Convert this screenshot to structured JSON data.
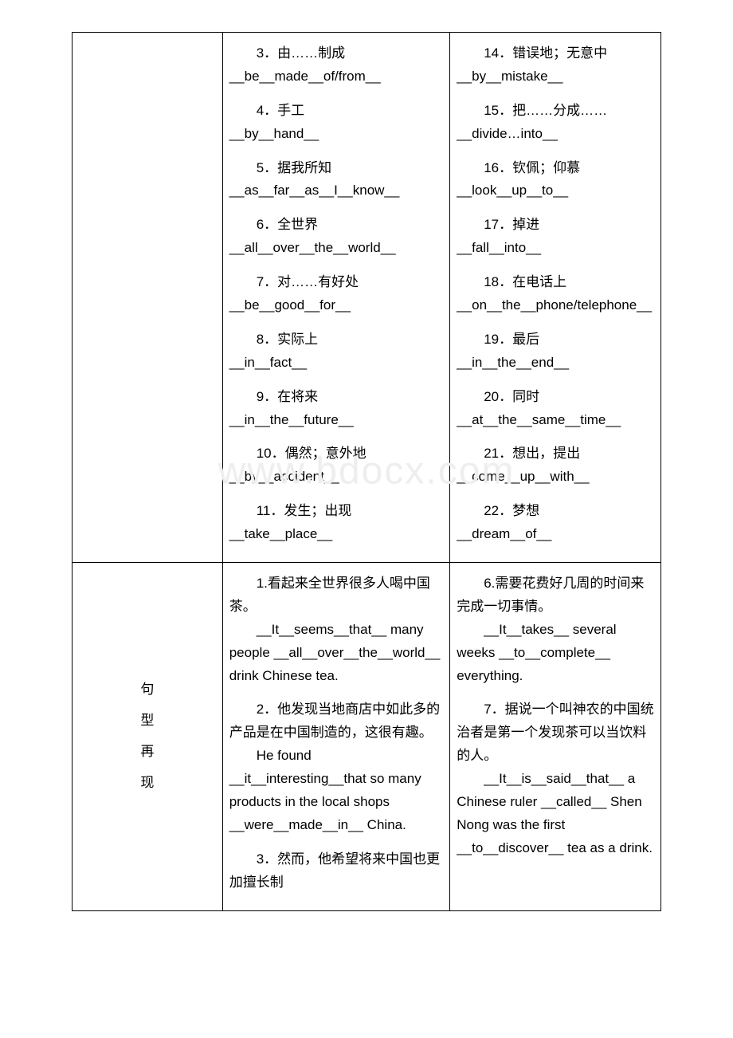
{
  "watermark": "www.bdocx.com",
  "section1_label_lines": [
    "句",
    "型",
    "再",
    "现"
  ],
  "sec0": {
    "col2": [
      {
        "zh": "3．由……制成",
        "en": "__be__made__of/from__"
      },
      {
        "zh": "4．手工",
        "en": "__by__hand__"
      },
      {
        "zh": "5．据我所知",
        "en": "__as__far__as__I__know__"
      },
      {
        "zh": "6．全世界",
        "en": "__all__over__the__world__"
      },
      {
        "zh": "7．对……有好处",
        "en": "__be__good__for__"
      },
      {
        "zh": "8．实际上",
        "en": "__in__fact__"
      },
      {
        "zh": "9．在将来",
        "en": "__in__the__future__"
      },
      {
        "zh": "10．偶然；意外地",
        "en": "__by__accident__"
      },
      {
        "zh": "11．发生；出现",
        "en": "__take__place__"
      }
    ],
    "col3": [
      {
        "zh": "14．错误地；无意中",
        "en": "__by__mistake__"
      },
      {
        "zh": "15．把……分成……",
        "en": "__divide…into__"
      },
      {
        "zh": "16．钦佩；仰慕",
        "en": "__look__up__to__"
      },
      {
        "zh": "17．掉进",
        "en": "__fall__into__"
      },
      {
        "zh": "18．在电话上",
        "en": "__on__the__phone/telephone__"
      },
      {
        "zh": "19．最后",
        "en": "__in__the__end__"
      },
      {
        "zh": "20．同时",
        "en": "__at__the__same__time__"
      },
      {
        "zh": "21．想出，提出",
        "en": "__come__up__with__"
      },
      {
        "zh": "22．梦想",
        "en": "__dream__of__"
      }
    ]
  },
  "sec1": {
    "col2": [
      {
        "zh": "1.看起来全世界很多人喝中国茶。",
        "en": "__It__seems__that__ many people __all__over__the__world__ drink Chinese tea.",
        "zh_indent": true,
        "en_indent": true
      },
      {
        "zh": "2．他发现当地商店中如此多的产品是在中国制造的，这很有趣。",
        "en": "He found __it__interesting__that so many products in the local shops __were__made__in__ China.",
        "zh_indent": true,
        "en_indent": true
      },
      {
        "zh": "3．然而，他希望将来中国也更加擅长制",
        "en": "",
        "zh_indent": true
      }
    ],
    "col3": [
      {
        "zh": "6.需要花费好几周的时间来完成一切事情。",
        "en": "__It__takes__ several weeks __to__complete__ everything.",
        "zh_indent": true,
        "en_indent": true
      },
      {
        "zh": "7．据说一个叫神农的中国统治者是第一个发现茶可以当饮料的人。",
        "en": "__It__is__said__that__ a Chinese ruler __called__ Shen Nong was the first __to__discover__ tea as a drink.",
        "zh_indent": true,
        "en_indent": true
      }
    ]
  }
}
